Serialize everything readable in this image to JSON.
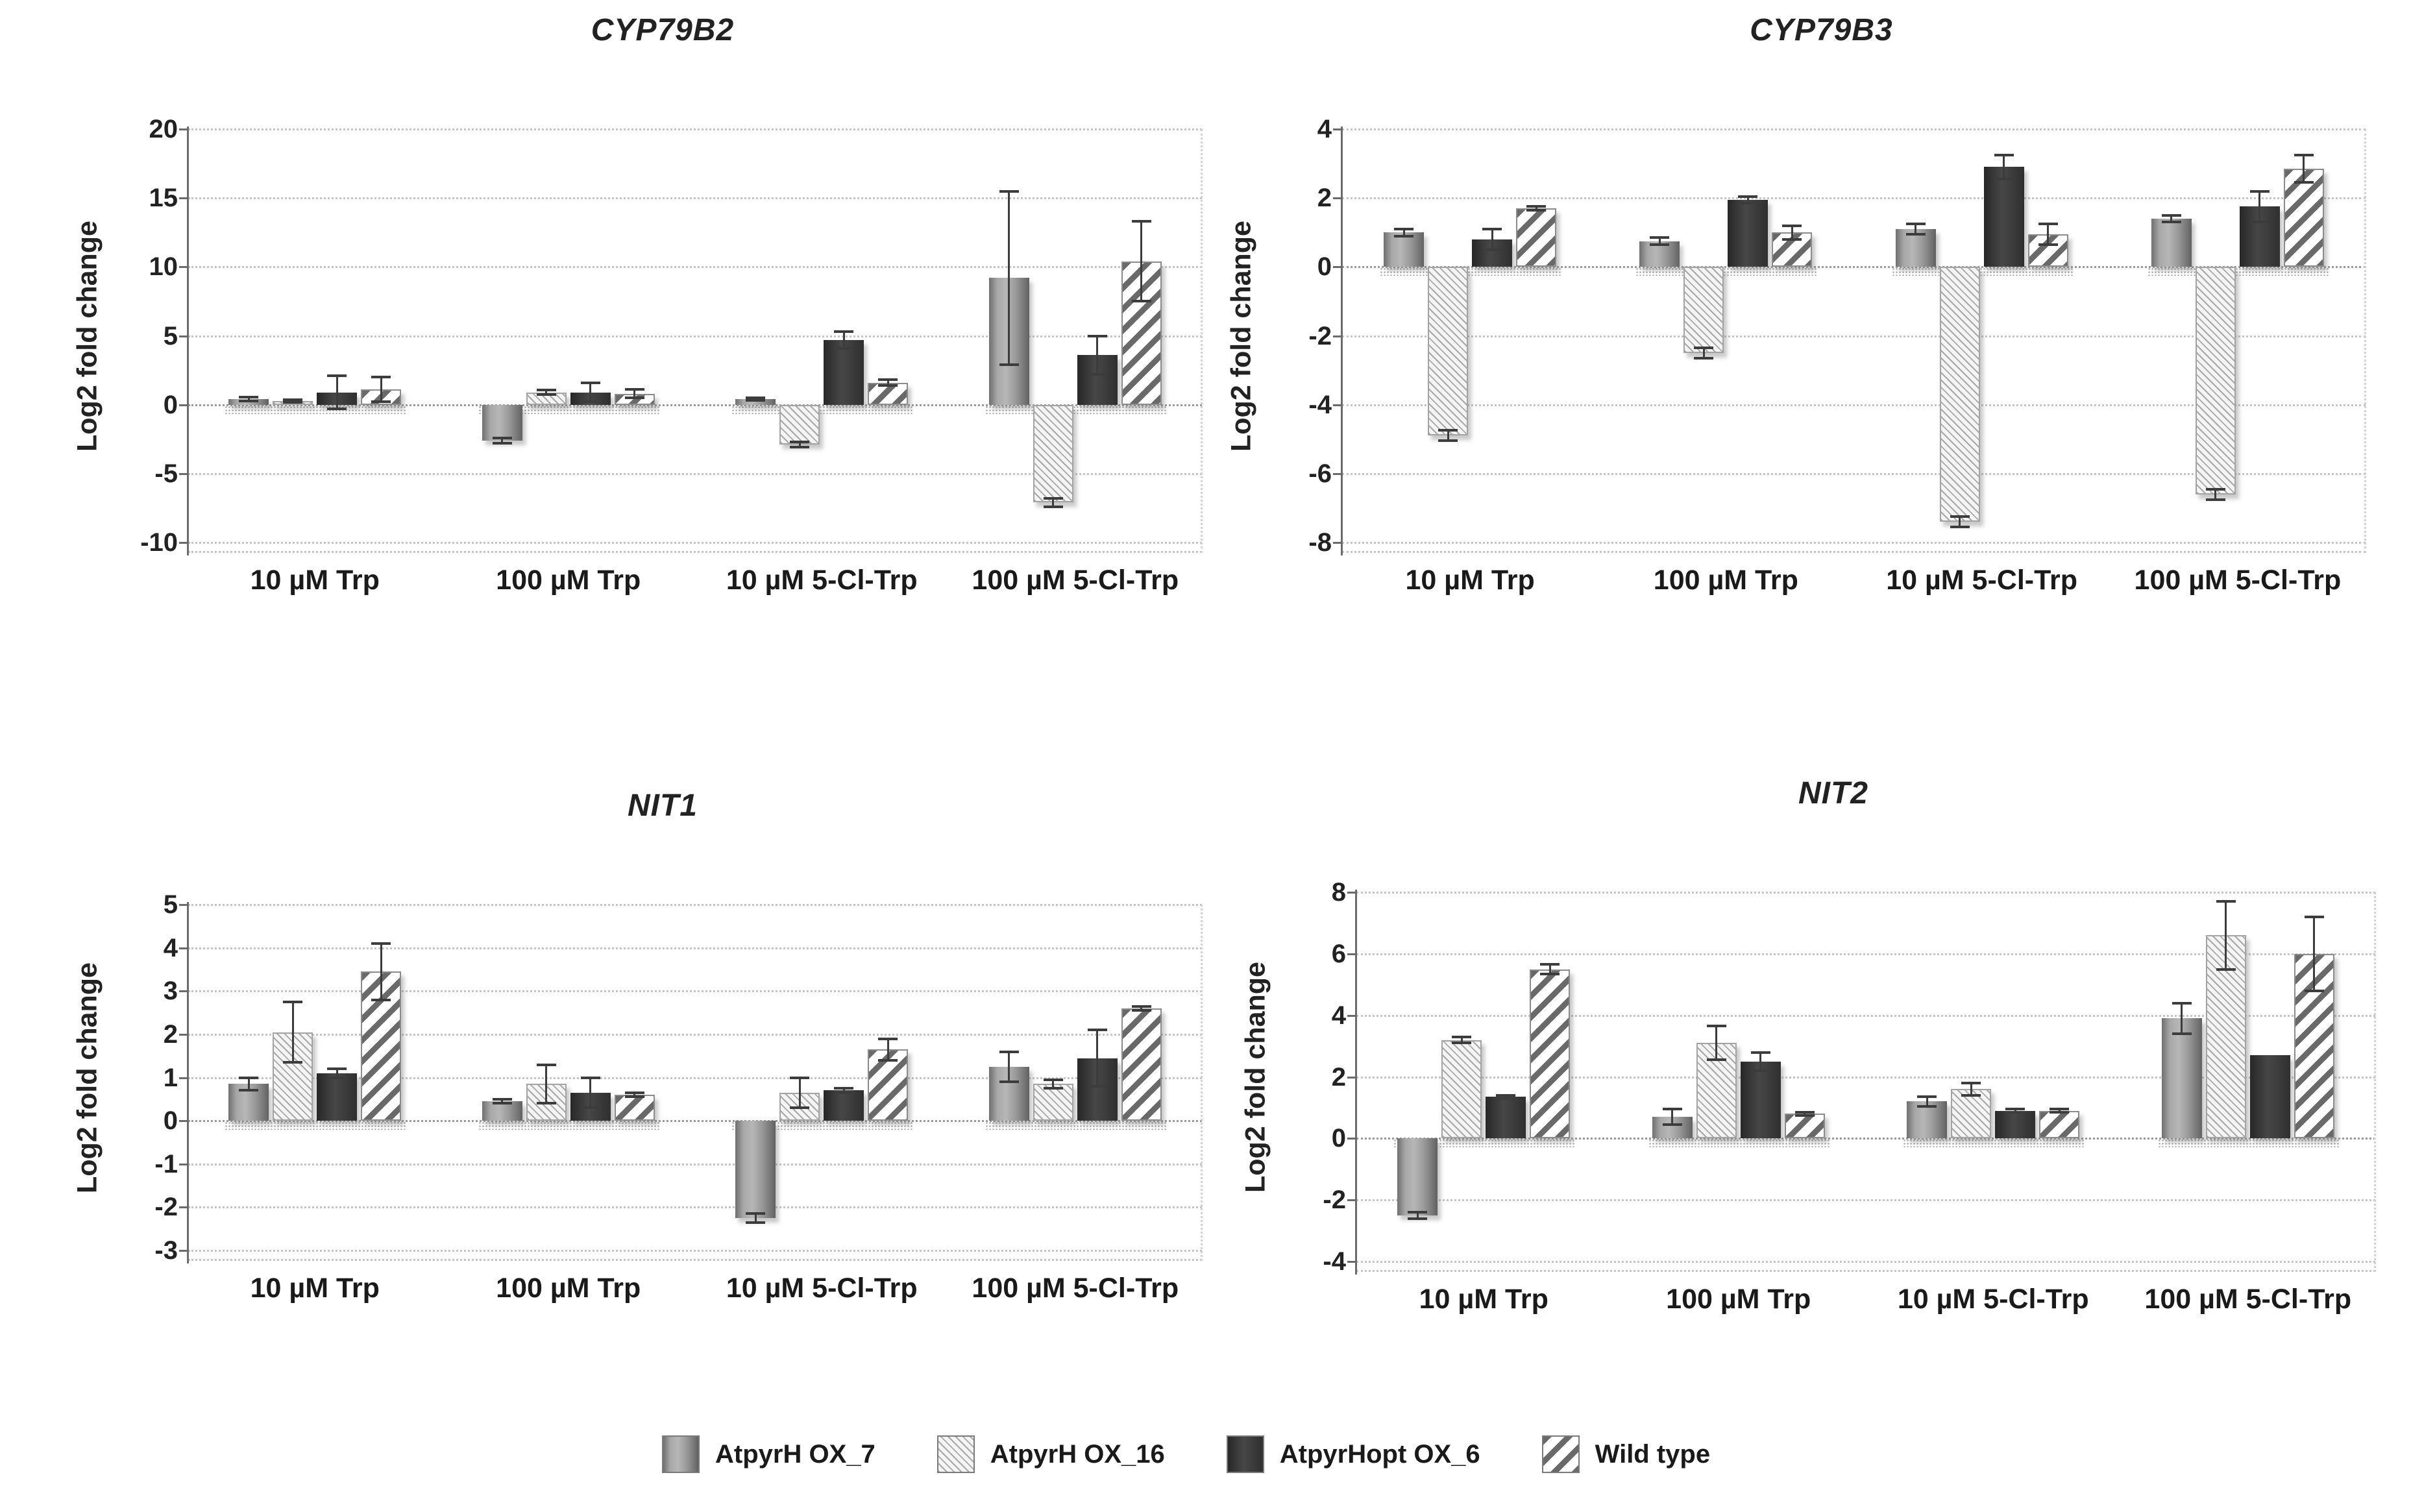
{
  "figure": {
    "ylabel": "Log2 fold change"
  },
  "legend": {
    "items": [
      {
        "label": "AtpyrH OX_7",
        "series": "ox7"
      },
      {
        "label": "AtpyrH OX_16",
        "series": "ox16"
      },
      {
        "label": "AtpyrHopt OX_6",
        "series": "ox6"
      },
      {
        "label": "Wild type",
        "series": "wt"
      }
    ]
  },
  "chart_data": [
    {
      "id": "cyp79b2",
      "type": "bar",
      "title": "CYP79B2",
      "ylabel": "Log2 fold change",
      "categories": [
        "10 µM Trp",
        "100 µM Trp",
        "10 µM 5-Cl-Trp",
        "100 µM 5-Cl-Trp"
      ],
      "yticks": [
        20,
        15,
        10,
        5,
        0,
        -5,
        -10
      ],
      "ylim": [
        -10,
        20
      ],
      "grid": true,
      "legend_position": "bottom-shared",
      "series": [
        {
          "name": "AtpyrH OX_7",
          "key": "ox7",
          "values": [
            0.4,
            -2.6,
            0.4,
            9.2
          ],
          "errors": [
            0.15,
            0.2,
            0.1,
            6.3
          ]
        },
        {
          "name": "AtpyrH OX_16",
          "key": "ox16",
          "values": [
            0.25,
            0.9,
            -2.9,
            -7.1
          ],
          "errors": [
            0.1,
            0.15,
            0.2,
            0.3
          ]
        },
        {
          "name": "AtpyrHopt OX_6",
          "key": "ox6",
          "values": [
            0.9,
            0.9,
            4.7,
            3.6
          ],
          "errors": [
            1.2,
            0.7,
            0.6,
            1.4
          ]
        },
        {
          "name": "Wild type",
          "key": "wt",
          "values": [
            1.1,
            0.8,
            1.6,
            10.4
          ],
          "errors": [
            0.9,
            0.3,
            0.2,
            2.9
          ]
        }
      ]
    },
    {
      "id": "cyp79b3",
      "type": "bar",
      "title": "CYP79B3",
      "ylabel": "Log2 fold change",
      "categories": [
        "10 µM Trp",
        "100 µM Trp",
        "10 µM 5-Cl-Trp",
        "100 µM 5-Cl-Trp"
      ],
      "yticks": [
        4,
        2,
        0,
        -2,
        -4,
        -6,
        -8
      ],
      "ylim": [
        -8,
        4
      ],
      "grid": true,
      "legend_position": "bottom-shared",
      "series": [
        {
          "name": "AtpyrH OX_7",
          "key": "ox7",
          "values": [
            1.0,
            0.75,
            1.1,
            1.4
          ],
          "errors": [
            0.1,
            0.1,
            0.15,
            0.1
          ]
        },
        {
          "name": "AtpyrH OX_16",
          "key": "ox16",
          "values": [
            -4.9,
            -2.5,
            -7.4,
            -6.6
          ],
          "errors": [
            0.15,
            0.15,
            0.15,
            0.15
          ]
        },
        {
          "name": "AtpyrHopt OX_6",
          "key": "ox6",
          "values": [
            0.8,
            1.95,
            2.9,
            1.75
          ],
          "errors": [
            0.3,
            0.1,
            0.35,
            0.45
          ]
        },
        {
          "name": "Wild type",
          "key": "wt",
          "values": [
            1.7,
            1.0,
            0.95,
            2.85
          ],
          "errors": [
            0.05,
            0.2,
            0.3,
            0.4
          ]
        }
      ]
    },
    {
      "id": "nit1",
      "type": "bar",
      "title": "NIT1",
      "ylabel": "Log2 fold change",
      "categories": [
        "10 µM Trp",
        "100 µM Trp",
        "10 µM 5-Cl-Trp",
        "100 µM 5-Cl-Trp"
      ],
      "yticks": [
        5,
        4,
        3,
        2,
        1,
        0,
        -1,
        -2,
        -3
      ],
      "ylim": [
        -3,
        5
      ],
      "grid": true,
      "legend_position": "bottom-shared",
      "series": [
        {
          "name": "AtpyrH OX_7",
          "key": "ox7",
          "values": [
            0.85,
            0.45,
            -2.25,
            1.25
          ],
          "errors": [
            0.15,
            0.05,
            0.1,
            0.35
          ]
        },
        {
          "name": "AtpyrH OX_16",
          "key": "ox16",
          "values": [
            2.05,
            0.85,
            0.65,
            0.85
          ],
          "errors": [
            0.7,
            0.45,
            0.35,
            0.1
          ]
        },
        {
          "name": "AtpyrHopt OX_6",
          "key": "ox6",
          "values": [
            1.1,
            0.65,
            0.7,
            1.45
          ],
          "errors": [
            0.1,
            0.35,
            0.05,
            0.65
          ]
        },
        {
          "name": "Wild type",
          "key": "wt",
          "values": [
            3.45,
            0.6,
            1.65,
            2.6
          ],
          "errors": [
            0.65,
            0.05,
            0.25,
            0.05
          ]
        }
      ]
    },
    {
      "id": "nit2",
      "type": "bar",
      "title": "NIT2",
      "ylabel": "Log2 fold change",
      "categories": [
        "10 µM Trp",
        "100 µM Trp",
        "10 µM 5-Cl-Trp",
        "100 µM 5-Cl-Trp"
      ],
      "yticks": [
        8,
        6,
        4,
        2,
        0,
        -2,
        -4
      ],
      "ylim": [
        -4,
        8
      ],
      "grid": true,
      "legend_position": "bottom-shared",
      "series": [
        {
          "name": "AtpyrH OX_7",
          "key": "ox7",
          "values": [
            -2.5,
            0.7,
            1.2,
            3.9
          ],
          "errors": [
            0.1,
            0.25,
            0.15,
            0.5
          ]
        },
        {
          "name": "AtpyrH OX_16",
          "key": "ox16",
          "values": [
            3.2,
            3.1,
            1.6,
            6.6
          ],
          "errors": [
            0.1,
            0.55,
            0.2,
            1.1
          ]
        },
        {
          "name": "AtpyrHopt OX_6",
          "key": "ox6",
          "values": [
            1.35,
            2.5,
            0.9,
            2.7
          ],
          "errors": [
            0.05,
            0.3,
            0.05,
            0
          ]
        },
        {
          "name": "Wild type",
          "key": "wt",
          "values": [
            5.5,
            0.8,
            0.9,
            6.0
          ],
          "errors": [
            0.15,
            0.05,
            0.05,
            1.2
          ]
        }
      ]
    }
  ]
}
